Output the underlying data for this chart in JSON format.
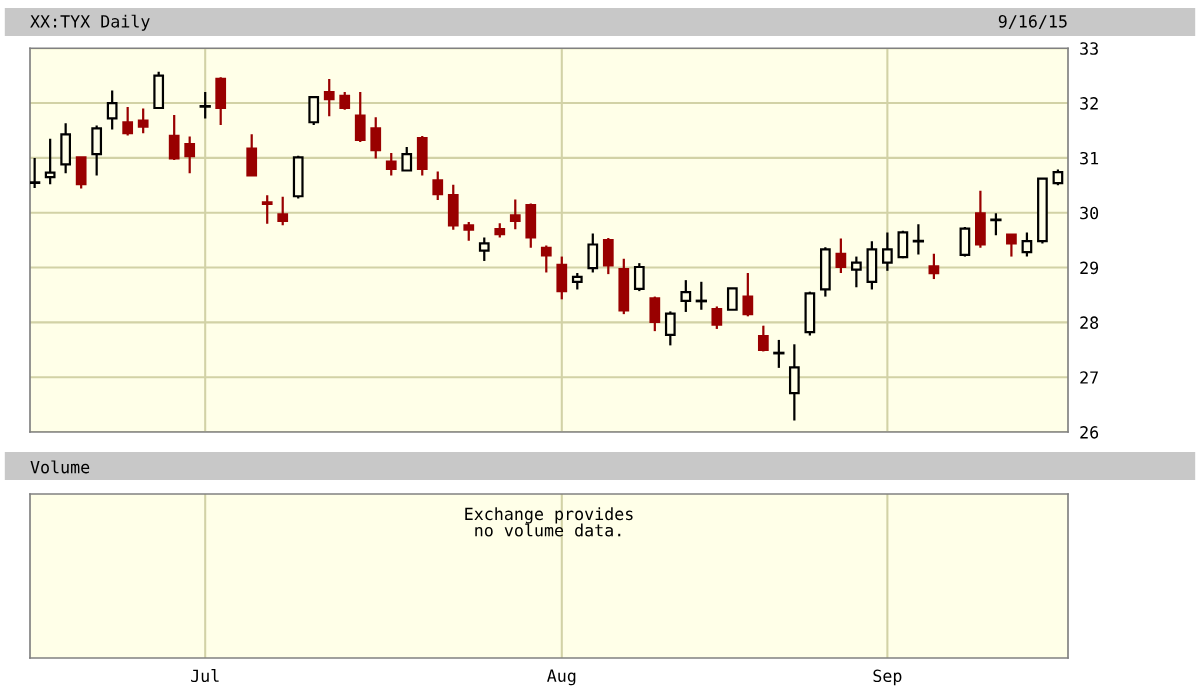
{
  "chart_data": [
    {
      "type": "candlestick",
      "title": "XX:TYX Daily",
      "subtitle": "9/16/15",
      "categories": [
        null,
        null,
        null,
        null,
        null,
        null,
        null,
        null,
        null,
        null,
        null,
        null,
        null,
        null,
        null,
        null,
        null,
        null,
        null,
        null,
        null,
        null,
        null,
        null,
        null,
        null,
        null,
        null,
        null,
        null,
        null,
        null,
        null,
        null,
        null,
        null,
        null,
        null,
        null,
        null,
        null,
        null,
        null,
        null,
        null,
        null,
        null,
        null,
        null,
        null,
        null,
        null,
        null,
        null,
        null,
        null,
        null,
        null,
        null,
        null,
        null,
        null,
        null,
        null,
        null,
        null,
        null
      ],
      "ohlc": [
        [
          30.55,
          31.0,
          30.45,
          30.55
        ],
        [
          30.65,
          31.35,
          30.52,
          30.73
        ],
        [
          30.88,
          31.63,
          30.72,
          31.43
        ],
        [
          31.01,
          31.01,
          30.44,
          30.52
        ],
        [
          31.07,
          31.59,
          30.68,
          31.54
        ],
        [
          31.72,
          32.23,
          31.52,
          32.0
        ],
        [
          31.65,
          31.93,
          31.41,
          31.45
        ],
        [
          31.68,
          31.9,
          31.45,
          31.57
        ],
        [
          31.91,
          32.57,
          31.91,
          32.5
        ],
        [
          31.4,
          31.78,
          30.96,
          30.99
        ],
        [
          31.25,
          31.39,
          30.72,
          31.03
        ],
        [
          31.94,
          32.2,
          31.72,
          31.94
        ],
        [
          32.44,
          32.47,
          31.6,
          31.91
        ],
        null,
        [
          31.17,
          31.43,
          30.68,
          30.68
        ],
        [
          30.19,
          30.32,
          29.8,
          30.16
        ],
        [
          29.97,
          30.29,
          29.77,
          29.85
        ],
        [
          30.3,
          31.04,
          30.26,
          31.01
        ],
        [
          31.65,
          32.11,
          31.6,
          32.11
        ],
        [
          32.2,
          32.44,
          31.76,
          32.07
        ],
        [
          32.13,
          32.2,
          31.88,
          31.91
        ],
        [
          31.77,
          32.2,
          31.29,
          31.33
        ],
        [
          31.54,
          31.74,
          30.99,
          31.14
        ],
        [
          30.93,
          31.09,
          30.68,
          30.8
        ],
        [
          30.77,
          31.2,
          30.77,
          31.07
        ],
        [
          31.36,
          31.4,
          30.68,
          30.8
        ],
        [
          30.59,
          30.75,
          30.23,
          30.34
        ],
        [
          30.32,
          30.51,
          29.69,
          29.77
        ],
        [
          29.77,
          29.83,
          29.49,
          29.69
        ],
        [
          29.31,
          29.55,
          29.12,
          29.44
        ],
        [
          29.7,
          29.81,
          29.55,
          29.61
        ],
        [
          29.95,
          30.24,
          29.7,
          29.85
        ],
        [
          30.14,
          30.17,
          29.36,
          29.55
        ],
        [
          29.36,
          29.4,
          28.91,
          29.22
        ],
        [
          29.05,
          29.2,
          28.42,
          28.57
        ],
        [
          28.74,
          28.9,
          28.6,
          28.83
        ],
        [
          28.99,
          29.62,
          28.91,
          29.42
        ],
        [
          29.5,
          29.54,
          28.88,
          29.04
        ],
        [
          28.97,
          29.16,
          28.15,
          28.22
        ],
        [
          28.61,
          29.08,
          28.57,
          29.01
        ],
        [
          28.44,
          28.47,
          27.84,
          28.01
        ],
        [
          27.77,
          28.2,
          27.58,
          28.16
        ],
        [
          28.39,
          28.77,
          28.19,
          28.55
        ],
        [
          28.39,
          28.74,
          28.23,
          28.39
        ],
        [
          28.24,
          28.29,
          27.88,
          27.96
        ],
        [
          28.23,
          28.62,
          28.23,
          28.62
        ],
        [
          28.47,
          28.9,
          28.11,
          28.15
        ],
        [
          27.75,
          27.94,
          27.47,
          27.5
        ],
        [
          27.44,
          27.68,
          27.17,
          27.44
        ],
        [
          26.71,
          27.6,
          26.21,
          27.18
        ],
        [
          27.82,
          28.56,
          27.76,
          28.53
        ],
        [
          28.6,
          29.37,
          28.47,
          29.33
        ],
        [
          29.25,
          29.53,
          28.9,
          29.01
        ],
        [
          28.96,
          29.2,
          28.64,
          29.09
        ],
        [
          28.74,
          29.48,
          28.6,
          29.33
        ],
        [
          29.09,
          29.64,
          28.94,
          29.33
        ],
        [
          29.19,
          29.67,
          29.17,
          29.64
        ],
        [
          29.48,
          29.79,
          29.24,
          29.48
        ],
        [
          29.02,
          29.25,
          28.79,
          28.9
        ],
        null,
        [
          29.23,
          29.74,
          29.2,
          29.71
        ],
        [
          29.99,
          30.4,
          29.36,
          29.42
        ],
        [
          29.87,
          29.99,
          29.59,
          29.87
        ],
        [
          29.6,
          29.6,
          29.2,
          29.44
        ],
        [
          29.28,
          29.64,
          29.2,
          29.48
        ],
        [
          29.48,
          30.62,
          29.44,
          30.62
        ],
        [
          30.54,
          30.79,
          30.5,
          30.74
        ]
      ],
      "colors": [
        "#000000",
        "#000000",
        "#000000",
        "#990000",
        "#000000",
        "#000000",
        "#990000",
        "#990000",
        "#000000",
        "#990000",
        "#990000",
        "#000000",
        "#990000",
        null,
        "#990000",
        "#990000",
        "#990000",
        "#000000",
        "#000000",
        "#990000",
        "#990000",
        "#990000",
        "#990000",
        "#990000",
        "#000000",
        "#990000",
        "#990000",
        "#990000",
        "#990000",
        "#000000",
        "#990000",
        "#990000",
        "#990000",
        "#990000",
        "#990000",
        "#000000",
        "#000000",
        "#990000",
        "#990000",
        "#000000",
        "#990000",
        "#000000",
        "#000000",
        "#000000",
        "#990000",
        "#000000",
        "#990000",
        "#990000",
        "#000000",
        "#000000",
        "#000000",
        "#000000",
        "#990000",
        "#000000",
        "#000000",
        "#000000",
        "#000000",
        "#000000",
        "#990000",
        null,
        "#000000",
        "#990000",
        "#000000",
        "#990000",
        "#000000",
        "#000000",
        "#000000"
      ],
      "ylim": [
        26,
        33
      ],
      "yticks": [
        26,
        27,
        28,
        29,
        30,
        31,
        32,
        33
      ],
      "grid": true,
      "tick_labels": "y"
    },
    {
      "type": "other",
      "title": "Volume",
      "annotations": [
        "Exchange provides\nno volume data."
      ],
      "categories": [
        null,
        null,
        null,
        null,
        null,
        null,
        null,
        null,
        null,
        null,
        null,
        "Jul",
        null,
        null,
        null,
        null,
        null,
        null,
        null,
        null,
        null,
        null,
        null,
        null,
        null,
        null,
        null,
        null,
        null,
        null,
        null,
        null,
        null,
        null,
        "Aug",
        null,
        null,
        null,
        null,
        null,
        null,
        null,
        null,
        null,
        null,
        null,
        null,
        null,
        null,
        null,
        null,
        null,
        null,
        null,
        null,
        "Sep",
        null,
        null,
        null,
        null,
        null,
        null,
        null,
        null,
        null,
        null,
        null
      ]
    }
  ]
}
